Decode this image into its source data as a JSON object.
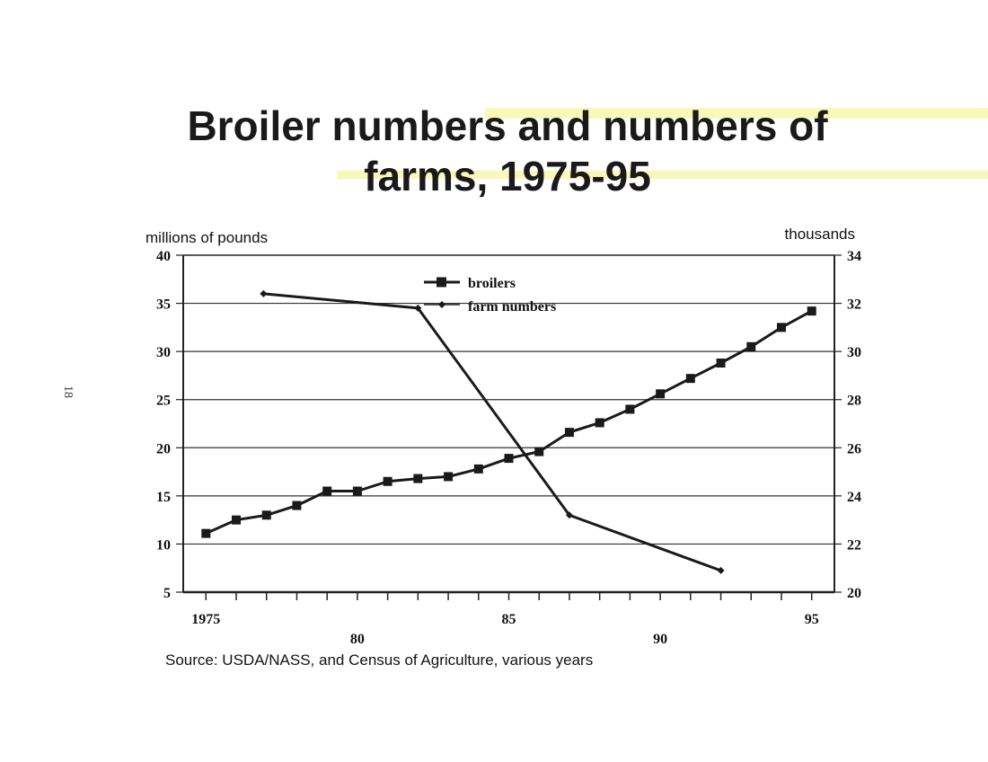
{
  "page": {
    "title_line1": "Broiler numbers and numbers of",
    "title_line2": "farms, 1975-95",
    "page_number": "18",
    "source": "Source:  USDA/NASS, and Census of Agriculture, various years"
  },
  "chart_data": {
    "type": "line",
    "title": "Broiler numbers and numbers of farms, 1975-95",
    "left_axis_label": "millions of pounds",
    "right_axis_label": "thousands",
    "y_left_lim": [
      5,
      40
    ],
    "y_left_ticks": [
      "5",
      "10",
      "15",
      "20",
      "25",
      "30",
      "35",
      "40"
    ],
    "y_right_lim": [
      20,
      34
    ],
    "y_right_ticks": [
      "20",
      "22",
      "24",
      "26",
      "28",
      "30",
      "32",
      "34"
    ],
    "x_lim": [
      1975,
      1995
    ],
    "x_tick_labels": [
      {
        "x": 1975,
        "label": "1975",
        "row": 1
      },
      {
        "x": 1980,
        "label": "80",
        "row": 2
      },
      {
        "x": 1985,
        "label": "85",
        "row": 1
      },
      {
        "x": 1990,
        "label": "90",
        "row": 2
      },
      {
        "x": 1995,
        "label": "95",
        "row": 1
      }
    ],
    "grid": true,
    "legend_position": "top-center",
    "series": [
      {
        "name": "broilers",
        "axis": "left",
        "marker": "square",
        "color": "#1a1a1a",
        "x": [
          1975,
          1976,
          1977,
          1978,
          1979,
          1980,
          1981,
          1982,
          1983,
          1984,
          1985,
          1986,
          1987,
          1988,
          1989,
          1990,
          1991,
          1992,
          1993,
          1994,
          1995
        ],
        "values": [
          11.1,
          12.5,
          13.0,
          14.0,
          15.5,
          15.5,
          16.5,
          16.8,
          17.0,
          17.8,
          18.9,
          19.6,
          21.6,
          22.6,
          24.0,
          25.6,
          27.2,
          28.8,
          30.5,
          32.5,
          34.2
        ]
      },
      {
        "name": "farm numbers",
        "axis": "right",
        "marker": "diamond",
        "color": "#1a1a1a",
        "x": [
          1976.9,
          1982,
          1987,
          1992
        ],
        "values": [
          32.4,
          31.8,
          23.2,
          20.9
        ]
      }
    ]
  }
}
